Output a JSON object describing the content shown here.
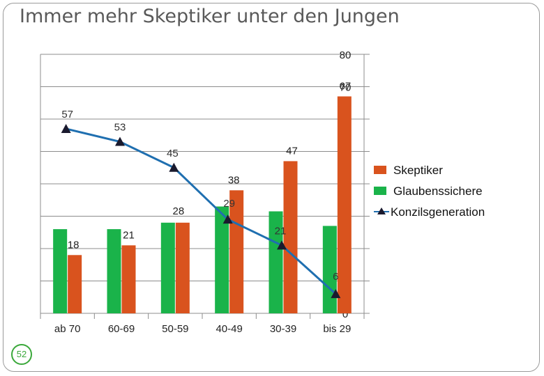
{
  "title": "Immer mehr Skeptiker unter den Jungen",
  "slide_number": "52",
  "colors": {
    "skeptiker": "#d9531e",
    "glaubenssichere": "#1ab34a",
    "konzils": "#1f6fb0",
    "axis": "#8c8c8c"
  },
  "chart_data": {
    "type": "bar",
    "categories": [
      "ab 70",
      "60-69",
      "50-59",
      "40-49",
      "30-39",
      "bis 29"
    ],
    "ylim": [
      0,
      80
    ],
    "yticks": [
      "0",
      "10",
      "20",
      "30",
      "40",
      "50",
      "60",
      "70",
      "80"
    ],
    "legend_position": "right",
    "series": [
      {
        "name": "Skeptiker",
        "type": "bar",
        "values": [
          18,
          21,
          28,
          38,
          47,
          67
        ],
        "labels": [
          "18",
          "21",
          "28",
          "38",
          "47",
          "67"
        ]
      },
      {
        "name": "Glaubenssichere",
        "type": "bar",
        "values": [
          26,
          26,
          28,
          33,
          31.5,
          27
        ],
        "labels": []
      },
      {
        "name": "Konzilsgeneration",
        "type": "line",
        "values": [
          57,
          53,
          45,
          29,
          21,
          6
        ],
        "labels": [
          "57",
          "53",
          "45",
          "29",
          "21",
          "6"
        ]
      }
    ]
  }
}
